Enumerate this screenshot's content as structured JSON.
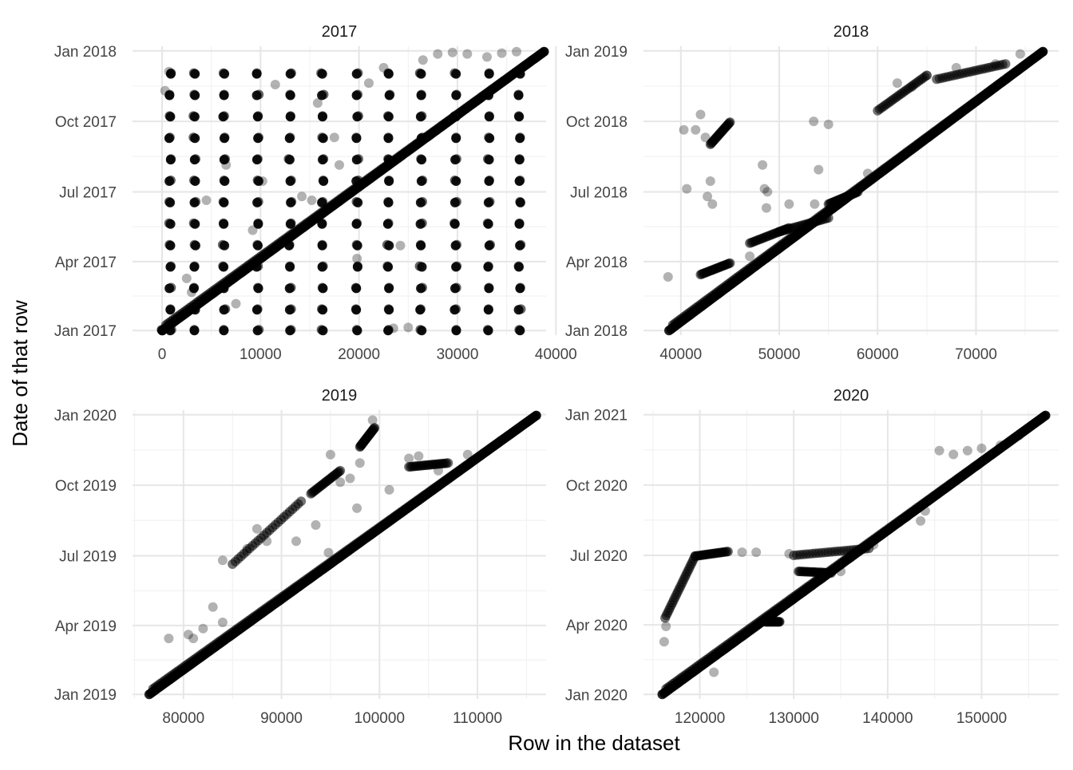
{
  "chart_data": {
    "type": "scatter",
    "layout": "facet-grid-2x2",
    "xlabel": "Row in the dataset",
    "ylabel": "Date of that row",
    "point_color": "#000000",
    "point_opacity": 0.3,
    "grid": true,
    "facets": [
      {
        "title": "2017",
        "xlim": [
          -3000,
          39000
        ],
        "xticks": [
          0,
          10000,
          20000,
          30000,
          40000
        ],
        "xtick_labels": [
          "0",
          "10000",
          "20000",
          "30000",
          "40000"
        ],
        "ylim": [
          "2016-12-26",
          "2018-01-07"
        ],
        "yticks": [
          "2017-01-01",
          "2017-04-01",
          "2017-07-01",
          "2017-10-01",
          "2018-01-01"
        ],
        "ytick_labels": [
          "Jan 2017",
          "Apr 2017",
          "Jul 2017",
          "Oct 2017",
          "Jan 2018"
        ],
        "diagonal": {
          "x_start": 0,
          "date_start": "2017-01-01",
          "x_end": 38800,
          "date_end": "2017-12-31"
        },
        "column_x": [
          0,
          800,
          3300,
          6300,
          9700,
          13000,
          16300,
          19800,
          23000,
          26300,
          29800,
          33200,
          36300
        ],
        "column_start_dates": [
          "2017-01-01",
          "2017-12-15",
          "2017-12-15",
          "2017-12-15",
          "2017-12-15",
          "2017-12-15",
          "2017-12-15",
          "2017-12-15",
          "2017-12-15",
          "2017-12-15",
          "2017-12-15",
          "2017-12-15",
          "2017-12-15"
        ],
        "column_row_dates": [
          "2017-01-01",
          "2017-01-28",
          "2017-02-25",
          "2017-03-25",
          "2017-04-22",
          "2017-05-20",
          "2017-06-17",
          "2017-07-15",
          "2017-08-12",
          "2017-09-09",
          "2017-10-07",
          "2017-11-04",
          "2017-12-02"
        ],
        "points": [
          [
            300,
            "2017-11-10"
          ],
          [
            700,
            "2017-12-05"
          ],
          [
            2500,
            "2017-03-10"
          ],
          [
            3000,
            "2017-02-20"
          ],
          [
            4500,
            "2017-06-20"
          ],
          [
            6500,
            "2017-08-05"
          ],
          [
            7500,
            "2017-02-05"
          ],
          [
            9200,
            "2017-05-12"
          ],
          [
            10200,
            "2017-07-15"
          ],
          [
            11500,
            "2017-11-18"
          ],
          [
            14200,
            "2017-06-25"
          ],
          [
            15200,
            "2017-06-20"
          ],
          [
            17500,
            "2017-09-10"
          ],
          [
            18000,
            "2017-08-05"
          ],
          [
            19800,
            "2017-04-05"
          ],
          [
            21000,
            "2017-11-20"
          ],
          [
            22500,
            "2017-12-10"
          ],
          [
            24200,
            "2017-04-22"
          ],
          [
            25000,
            "2017-01-05"
          ],
          [
            26500,
            "2017-12-20"
          ],
          [
            28000,
            "2017-12-28"
          ],
          [
            29500,
            "2017-12-30"
          ],
          [
            31000,
            "2017-12-28"
          ],
          [
            33000,
            "2017-12-24"
          ],
          [
            34500,
            "2017-12-29"
          ],
          [
            36000,
            "2017-12-31"
          ],
          [
            23500,
            "2017-01-04"
          ],
          [
            15800,
            "2017-10-25"
          ]
        ]
      },
      {
        "title": "2018",
        "xlim": [
          36200,
          78400
        ],
        "xticks": [
          40000,
          50000,
          60000,
          70000
        ],
        "xtick_labels": [
          "40000",
          "50000",
          "60000",
          "70000"
        ],
        "ylim": [
          "2017-12-26",
          "2019-01-07"
        ],
        "yticks": [
          "2018-01-01",
          "2018-04-01",
          "2018-07-01",
          "2018-10-01",
          "2019-01-01"
        ],
        "ytick_labels": [
          "Jan 2018",
          "Apr 2018",
          "Jul 2018",
          "Oct 2018",
          "Jan 2019"
        ],
        "diagonal": {
          "x_start": 38800,
          "date_start": "2018-01-01",
          "x_end": 76800,
          "date_end": "2018-12-31"
        },
        "segments": [
          {
            "x": [
              42000,
              45000
            ],
            "dates": [
              "2018-03-15",
              "2018-03-30"
            ]
          },
          {
            "x": [
              43000,
              45000
            ],
            "dates": [
              "2018-09-01",
              "2018-09-30"
            ]
          },
          {
            "x": [
              47000,
              51000
            ],
            "dates": [
              "2018-04-25",
              "2018-05-15"
            ]
          },
          {
            "x": [
              50000,
              55000
            ],
            "dates": [
              "2018-05-10",
              "2018-05-28"
            ]
          },
          {
            "x": [
              55000,
              58000
            ],
            "dates": [
              "2018-06-15",
              "2018-07-01"
            ]
          },
          {
            "x": [
              60000,
              65000
            ],
            "dates": [
              "2018-10-15",
              "2018-11-30"
            ]
          },
          {
            "x": [
              66000,
              73000
            ],
            "dates": [
              "2018-11-25",
              "2018-12-15"
            ]
          }
        ],
        "points": [
          [
            38700,
            "2018-03-12"
          ],
          [
            40300,
            "2018-09-20"
          ],
          [
            40600,
            "2018-07-05"
          ],
          [
            41500,
            "2018-09-20"
          ],
          [
            42000,
            "2018-10-10"
          ],
          [
            42500,
            "2018-09-10"
          ],
          [
            43000,
            "2018-07-15"
          ],
          [
            42700,
            "2018-06-25"
          ],
          [
            43200,
            "2018-06-15"
          ],
          [
            48500,
            "2018-07-05"
          ],
          [
            48300,
            "2018-08-05"
          ],
          [
            48700,
            "2018-06-10"
          ],
          [
            48800,
            "2018-07-01"
          ],
          [
            47000,
            "2018-04-08"
          ],
          [
            51000,
            "2018-06-15"
          ],
          [
            53600,
            "2018-06-15"
          ],
          [
            55000,
            "2018-09-27"
          ],
          [
            53500,
            "2018-10-01"
          ],
          [
            62000,
            "2018-11-20"
          ],
          [
            63500,
            "2018-11-15"
          ],
          [
            65000,
            "2018-11-30"
          ],
          [
            68000,
            "2018-12-10"
          ],
          [
            74500,
            "2018-12-28"
          ],
          [
            72000,
            "2018-12-15"
          ],
          [
            59000,
            "2018-07-25"
          ],
          [
            54000,
            "2018-07-30"
          ]
        ]
      },
      {
        "title": "2019",
        "xlim": [
          74800,
          117000
        ],
        "xticks": [
          80000,
          90000,
          100000,
          110000
        ],
        "xtick_labels": [
          "80000",
          "90000",
          "100000",
          "110000"
        ],
        "ylim": [
          "2018-12-26",
          "2020-01-07"
        ],
        "yticks": [
          "2019-01-01",
          "2019-04-01",
          "2019-07-01",
          "2019-10-01",
          "2020-01-01"
        ],
        "ytick_labels": [
          "Jan 2019",
          "Apr 2019",
          "Jul 2019",
          "Oct 2019",
          "Jan 2020"
        ],
        "diagonal": {
          "x_start": 76500,
          "date_start": "2019-01-01",
          "x_end": 116000,
          "date_end": "2019-12-31"
        },
        "segments": [
          {
            "x": [
              85000,
              92000
            ],
            "dates": [
              "2019-06-20",
              "2019-09-10"
            ]
          },
          {
            "x": [
              93000,
              96000
            ],
            "dates": [
              "2019-09-20",
              "2019-10-20"
            ]
          },
          {
            "x": [
              98000,
              99500
            ],
            "dates": [
              "2019-11-20",
              "2019-12-15"
            ]
          },
          {
            "x": [
              103000,
              107000
            ],
            "dates": [
              "2019-10-25",
              "2019-10-30"
            ]
          }
        ],
        "points": [
          [
            78500,
            "2019-03-15"
          ],
          [
            80500,
            "2019-03-20"
          ],
          [
            81000,
            "2019-03-15"
          ],
          [
            83000,
            "2019-04-25"
          ],
          [
            84000,
            "2019-06-25"
          ],
          [
            86500,
            "2019-07-10"
          ],
          [
            87500,
            "2019-08-05"
          ],
          [
            88500,
            "2019-07-20"
          ],
          [
            91500,
            "2019-07-20"
          ],
          [
            93500,
            "2019-08-10"
          ],
          [
            94800,
            "2019-07-05"
          ],
          [
            95000,
            "2019-11-10"
          ],
          [
            96000,
            "2019-10-05"
          ],
          [
            97000,
            "2019-10-10"
          ],
          [
            98000,
            "2019-10-30"
          ],
          [
            99300,
            "2019-12-25"
          ],
          [
            97700,
            "2019-09-01"
          ],
          [
            103000,
            "2019-11-05"
          ],
          [
            104000,
            "2019-11-08"
          ],
          [
            101000,
            "2019-09-25"
          ],
          [
            84000,
            "2019-04-05"
          ],
          [
            82000,
            "2019-03-28"
          ],
          [
            106000,
            "2019-10-20"
          ],
          [
            109000,
            "2019-11-10"
          ]
        ]
      },
      {
        "title": "2020",
        "xlim": [
          114000,
          158200
        ],
        "xticks": [
          120000,
          130000,
          140000,
          150000
        ],
        "xtick_labels": [
          "120000",
          "130000",
          "140000",
          "150000"
        ],
        "ylim": [
          "2019-12-26",
          "2021-01-07"
        ],
        "yticks": [
          "2020-01-01",
          "2020-04-01",
          "2020-07-01",
          "2020-10-01",
          "2021-01-01"
        ],
        "ytick_labels": [
          "Jan 2020",
          "Apr 2020",
          "Jul 2020",
          "Oct 2020",
          "Jan 2021"
        ],
        "diagonal": {
          "x_start": 116000,
          "date_start": "2020-01-01",
          "x_end": 156800,
          "date_end": "2020-12-31"
        },
        "segments": [
          {
            "x": [
              116300,
              119500
            ],
            "dates": [
              "2020-04-10",
              "2020-06-30"
            ]
          },
          {
            "x": [
              119500,
              123000
            ],
            "dates": [
              "2020-06-30",
              "2020-07-06"
            ]
          },
          {
            "x": [
              130000,
              138000
            ],
            "dates": [
              "2020-07-01",
              "2020-07-10"
            ]
          },
          {
            "x": [
              130500,
              134000
            ],
            "dates": [
              "2020-06-10",
              "2020-06-08"
            ]
          },
          {
            "x": [
              127000,
              128500
            ],
            "dates": [
              "2020-04-05",
              "2020-04-05"
            ]
          }
        ],
        "points": [
          [
            116200,
            "2020-03-10"
          ],
          [
            116400,
            "2020-03-30"
          ],
          [
            124500,
            "2020-07-05"
          ],
          [
            126000,
            "2020-07-05"
          ],
          [
            129500,
            "2020-07-03"
          ],
          [
            135000,
            "2020-06-10"
          ],
          [
            138500,
            "2020-07-15"
          ],
          [
            142000,
            "2020-08-20"
          ],
          [
            145500,
            "2020-11-15"
          ],
          [
            147000,
            "2020-11-10"
          ],
          [
            148500,
            "2020-11-15"
          ],
          [
            150000,
            "2020-11-18"
          ],
          [
            152000,
            "2020-11-22"
          ],
          [
            154000,
            "2020-12-05"
          ],
          [
            144000,
            "2020-08-28"
          ],
          [
            121500,
            "2020-01-30"
          ],
          [
            146500,
            "2020-09-30"
          ],
          [
            143500,
            "2020-08-15"
          ]
        ]
      }
    ]
  }
}
